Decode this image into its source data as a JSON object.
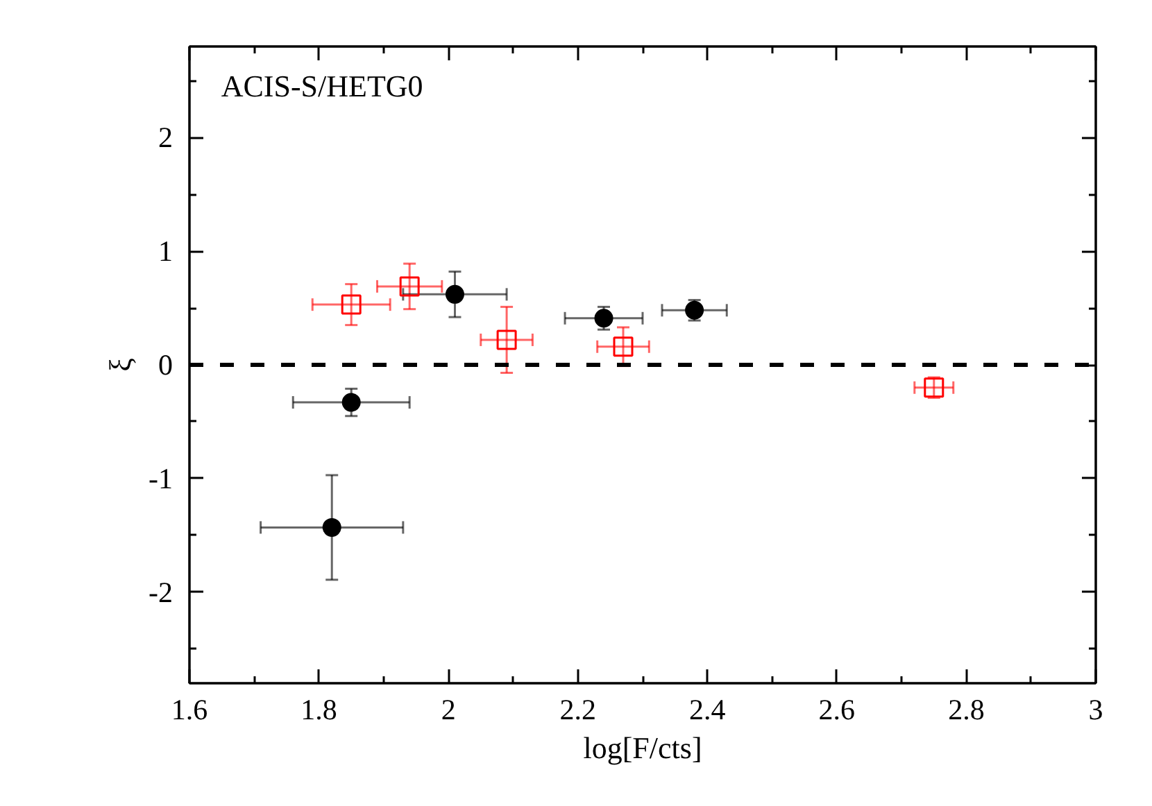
{
  "chart_data": {
    "type": "scatter",
    "xlabel": "log[F/cts]",
    "ylabel": "ξ",
    "annotations": [
      "ACIS-S/HETG0"
    ],
    "xlim": [
      1.6,
      3
    ],
    "ylim": [
      -2.8,
      2.8
    ],
    "xticks": [
      1.6,
      {
        "value": 1.7,
        "label": null
      },
      1.8,
      {
        "value": 1.9,
        "label": null
      },
      2,
      {
        "value": 2.1,
        "label": null
      },
      2.2,
      {
        "value": 2.3,
        "label": null
      },
      2.4,
      {
        "value": 2.5,
        "label": null
      },
      2.6,
      {
        "value": 2.7,
        "label": null
      },
      2.8,
      {
        "value": 2.9,
        "label": null
      },
      3
    ],
    "yticks": [
      {
        "value": -2.5,
        "label": null
      },
      -2,
      {
        "value": -1.5,
        "label": null
      },
      -1,
      {
        "value": -0.5,
        "label": null
      },
      0,
      {
        "value": 0.5,
        "label": null
      },
      1,
      {
        "value": 1.5,
        "label": null
      },
      2,
      {
        "value": 2.5,
        "label": null
      }
    ],
    "grid": false,
    "ref_lines": [
      {
        "axis": "y",
        "value": 0,
        "color": "#000000",
        "line_style": "dashed"
      }
    ],
    "series": [
      {
        "color": "#ff0000",
        "marker": "square",
        "x": [
          1.85,
          1.94,
          2.09,
          2.27,
          2.75
        ],
        "values": [
          0.53,
          0.69,
          0.22,
          0.16,
          -0.2
        ],
        "errors": [
          0.18,
          0.2,
          0.29,
          0.17,
          0.09
        ],
        "xerrors": [
          0.06,
          0.05,
          0.04,
          0.04,
          0.03
        ]
      },
      {
        "color": "#000000",
        "marker": "circle",
        "x": [
          1.85,
          1.82,
          2.01,
          2.24,
          2.38
        ],
        "values": [
          -0.33,
          -1.43,
          0.62,
          0.41,
          0.48
        ],
        "errors": [
          0.12,
          0.46,
          0.2,
          0.1,
          0.09
        ],
        "xerrors": [
          0.09,
          0.11,
          0.08,
          0.06,
          0.05
        ]
      }
    ]
  }
}
